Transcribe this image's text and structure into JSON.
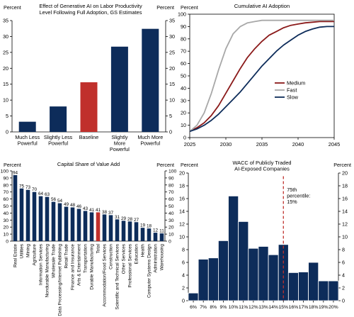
{
  "colors": {
    "navy": "#0d2c5a",
    "red": "#c0302c",
    "gray": "#a8a8a8",
    "dark_red": "#8b1a1a"
  },
  "chart_data": [
    {
      "id": "productivity",
      "type": "bar",
      "title": "Effect of Generative  AI on Labor Productivity\nLevel Following Full Adoption, GS Estimates",
      "ylabel_left": "Percent",
      "ylabel_right": "Percent",
      "ylim": [
        0,
        35
      ],
      "yticks": [
        0,
        5,
        10,
        15,
        20,
        25,
        30,
        35
      ],
      "categories": [
        "Much Less\nPowerful",
        "Slightly Less\nPowerful",
        "Baseline",
        "Slightly\nMore\nPowerful",
        "Much More\nPowerful"
      ],
      "values": [
        3.2,
        8.0,
        15.6,
        26.8,
        32.4
      ],
      "highlight_index": 2
    },
    {
      "id": "adoption",
      "type": "line",
      "title": "Cumulative AI Adoption",
      "ylabel_left": "Percent",
      "ylim": [
        0,
        100
      ],
      "yticks": [
        0,
        10,
        20,
        30,
        40,
        50,
        60,
        70,
        80,
        90,
        100
      ],
      "xlim": [
        2025,
        2045
      ],
      "xticks": [
        2025,
        2030,
        2035,
        2040,
        2045
      ],
      "legend_position": "center-right",
      "series": [
        {
          "name": "Medium",
          "color": "#8b1a1a",
          "x": [
            2025,
            2026,
            2027,
            2028,
            2029,
            2030,
            2031,
            2032,
            2033,
            2034,
            2035,
            2036,
            2037,
            2038,
            2039,
            2040,
            2041,
            2042,
            2043,
            2044,
            2045
          ],
          "y": [
            5,
            8,
            12,
            18,
            26,
            36,
            46,
            56,
            65,
            72,
            78,
            83,
            86,
            89,
            91,
            92,
            93,
            93.5,
            94,
            94,
            94
          ]
        },
        {
          "name": "Fast",
          "color": "#a8a8a8",
          "x": [
            2025,
            2026,
            2027,
            2028,
            2029,
            2030,
            2031,
            2032,
            2033,
            2034,
            2035,
            2036,
            2037,
            2038,
            2039,
            2040,
            2041,
            2042,
            2043,
            2044,
            2045
          ],
          "y": [
            5,
            10,
            20,
            36,
            55,
            72,
            84,
            90,
            93,
            94,
            95,
            95,
            95,
            95,
            95,
            95,
            95,
            95,
            95,
            95,
            95
          ]
        },
        {
          "name": "Slow",
          "color": "#0d2c5a",
          "x": [
            2025,
            2026,
            2027,
            2028,
            2029,
            2030,
            2031,
            2032,
            2033,
            2034,
            2035,
            2036,
            2037,
            2038,
            2039,
            2040,
            2041,
            2042,
            2043,
            2044,
            2045
          ],
          "y": [
            5,
            7,
            10,
            14,
            19,
            25,
            31,
            37,
            44,
            51,
            58,
            64,
            70,
            75,
            79,
            83,
            86,
            88,
            89.5,
            90,
            90
          ]
        }
      ]
    },
    {
      "id": "capital_share",
      "type": "bar",
      "title": "Capital Share of Value Add",
      "ylabel_left": "Percent",
      "ylabel_right": "Percent",
      "ylim": [
        0,
        100
      ],
      "yticks": [
        0,
        10,
        20,
        30,
        40,
        50,
        60,
        70,
        80,
        90,
        100
      ],
      "categories": [
        "Real Estate",
        "Utilities",
        "Mining",
        "Agriculture",
        "Information Services",
        "Nondurable Manufacturing",
        "Wholesale Trade",
        "Data Processing/Internet Publishing",
        "Retail Trade",
        "Finance and Insurance",
        "Arts & Entertainment",
        "Transportation",
        "Durable Manufacturing",
        "Total",
        "Accommodation/Food Services",
        "Construction",
        "Scientific and Technical Services",
        "Other Services",
        "Professional Services",
        "Education",
        "Health",
        "Computer Systems Design",
        "Administration",
        "Warehousing"
      ],
      "values": [
        94,
        75,
        73,
        70,
        64,
        63,
        56,
        54,
        49,
        48,
        46,
        43,
        41,
        41,
        38,
        37,
        31,
        29,
        28,
        27,
        19,
        18,
        12,
        11
      ],
      "value_labels": [
        "94",
        "75",
        "73",
        "70",
        "64",
        "63",
        "56",
        "54",
        "49",
        "48",
        "46",
        "43",
        "41",
        "41",
        "38",
        "37",
        "31",
        "29",
        "28",
        "27",
        "19",
        "18",
        "12",
        "11"
      ],
      "highlight_index": 13
    },
    {
      "id": "wacc",
      "type": "bar",
      "title": "WACC of Publicly Traded\nAI-Exposed Companies",
      "ylabel_left": "Percent",
      "ylabel_right": "Percent",
      "ylim": [
        0,
        20
      ],
      "yticks": [
        0,
        2,
        4,
        6,
        8,
        10,
        12,
        14,
        16,
        18,
        20
      ],
      "x_tick_labels": [
        "6%",
        "7%",
        "8%",
        "9%",
        "10%",
        "11%",
        "12%",
        "13%",
        "14%",
        "15%",
        "16%",
        "17%",
        "18%",
        "19%",
        "20%"
      ],
      "x_tick_values": [
        6,
        7,
        8,
        9,
        10,
        11,
        12,
        13,
        14,
        15,
        16,
        17,
        18,
        19,
        20
      ],
      "bin_edges": [
        5.5,
        6,
        6.5,
        7,
        7.5,
        8,
        8.5,
        9,
        9.5,
        10,
        10.5,
        11,
        11.5,
        12,
        12.5,
        13,
        13.5,
        14,
        14.5,
        15,
        15.5,
        16,
        16.5,
        17,
        17.5,
        18,
        18.5,
        19,
        19.5,
        20,
        20.5
      ],
      "bins": [
        {
          "from": 5.5,
          "to": 6.5,
          "value": 1.2
        },
        {
          "from": 6.5,
          "to": 7.5,
          "value": 6.5
        },
        {
          "from": 7.5,
          "to": 8.5,
          "value": 6.7
        },
        {
          "from": 8.5,
          "to": 9.5,
          "value": 9.4
        },
        {
          "from": 9.5,
          "to": 10.5,
          "value": 16.4
        },
        {
          "from": 10.5,
          "to": 11.5,
          "value": 12.4
        },
        {
          "from": 11.5,
          "to": 12.5,
          "value": 8.2
        },
        {
          "from": 12.5,
          "to": 13.5,
          "value": 8.5
        },
        {
          "from": 13.5,
          "to": 14.5,
          "value": 7.2
        },
        {
          "from": 14.5,
          "to": 15.5,
          "value": 8.8
        },
        {
          "from": 15.5,
          "to": 16.5,
          "value": 4.4
        },
        {
          "from": 16.5,
          "to": 17.5,
          "value": 4.5
        },
        {
          "from": 17.5,
          "to": 18.5,
          "value": 6.0
        },
        {
          "from": 18.5,
          "to": 19.5,
          "value": 3.1
        },
        {
          "from": 19.5,
          "to": 20.5,
          "value": 3.1
        }
      ],
      "percentile_line_x": 15,
      "annotation": "75th\npercentile:\n15%"
    }
  ]
}
